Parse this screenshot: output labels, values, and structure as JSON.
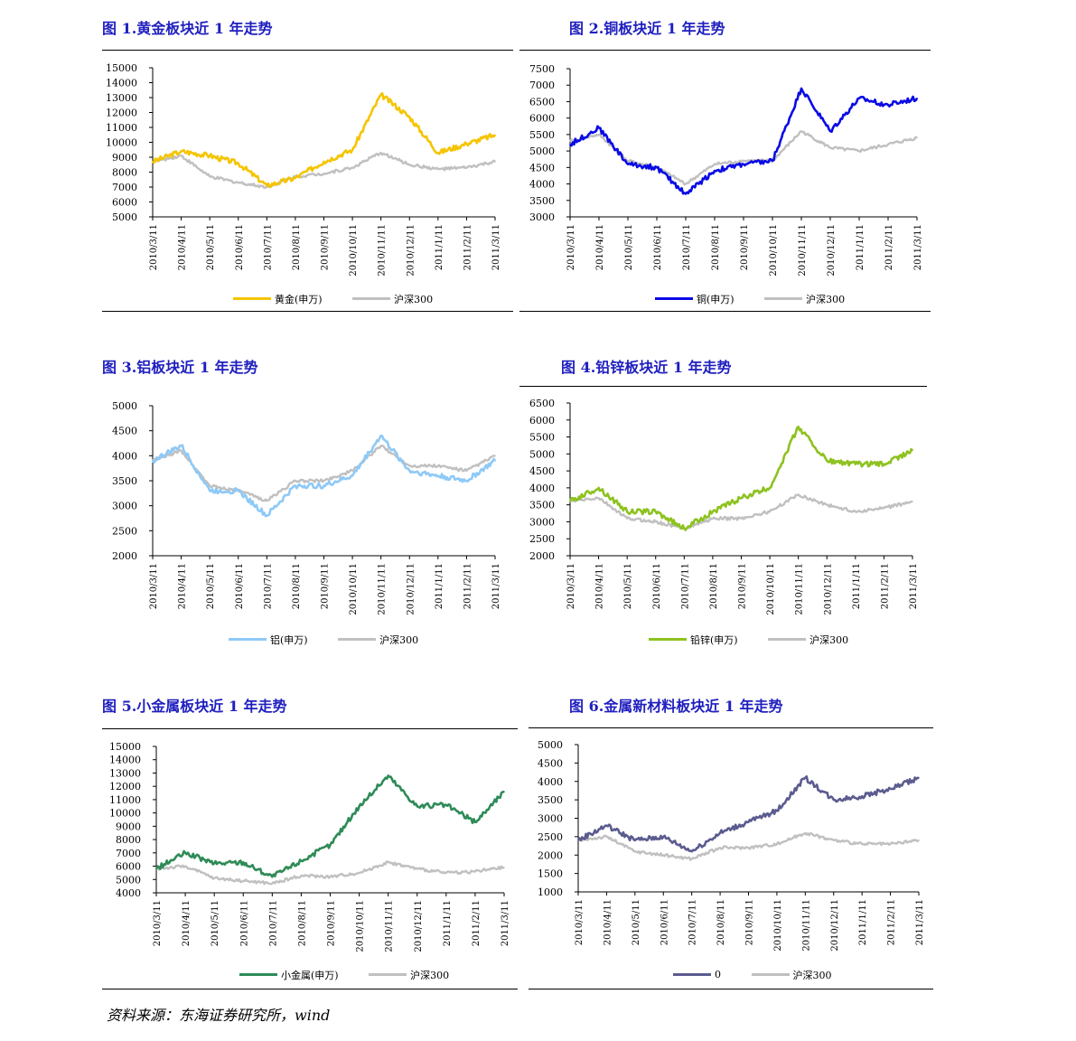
{
  "source_note": "资料来源：东海证券研究所，wind",
  "x_categories": [
    "2010/3/11",
    "2010/4/11",
    "2010/5/11",
    "2010/6/11",
    "2010/7/11",
    "2010/8/11",
    "2010/9/11",
    "2010/10/11",
    "2010/11/11",
    "2010/12/11",
    "2011/1/11",
    "2011/2/11",
    "2011/3/11"
  ],
  "colors": {
    "benchmark": "#c0c0c0",
    "title": "#1f1fbf"
  },
  "chart_data": [
    {
      "type": "line",
      "title": "图  1.黄金板块近 1 年走势",
      "ylim": [
        5000,
        15000
      ],
      "yticks": [
        5000,
        6000,
        7000,
        8000,
        9000,
        10000,
        11000,
        12000,
        13000,
        14000,
        15000
      ],
      "ytick_labels": [
        "5000",
        "6000",
        "7000",
        "8000",
        "9000",
        "10000",
        "11000",
        "12000",
        "13000",
        "14000",
        "15000"
      ],
      "series": [
        {
          "name": "黄金(申万)",
          "color": "#f5c400",
          "values": [
            8700,
            9400,
            9100,
            8600,
            7100,
            7600,
            8700,
            9500,
            13200,
            11700,
            9300,
            9900,
            10500
          ]
        },
        {
          "name": "沪深300",
          "color": "#c0c0c0",
          "values": [
            8700,
            9100,
            7700,
            7300,
            7000,
            7700,
            7900,
            8300,
            9300,
            8500,
            8200,
            8300,
            8700
          ]
        }
      ]
    },
    {
      "type": "line",
      "title": "图  2.铜板块近 1 年走势",
      "ylim": [
        3000,
        7500
      ],
      "yticks": [
        3000,
        3500,
        4000,
        4500,
        5000,
        5500,
        6000,
        6500,
        7000,
        7500
      ],
      "ytick_labels": [
        "3000",
        "3500",
        "4000",
        "4500",
        "5000",
        "5500",
        "6000",
        "6500",
        "7000",
        "7500"
      ],
      "series": [
        {
          "name": "铜(申万)",
          "color": "#0a0ae6",
          "values": [
            5200,
            5700,
            4600,
            4500,
            3700,
            4400,
            4600,
            4700,
            6900,
            5600,
            6600,
            6400,
            6600
          ]
        },
        {
          "name": "沪深300",
          "color": "#c0c0c0",
          "values": [
            5300,
            5500,
            4700,
            4500,
            4000,
            4600,
            4700,
            4700,
            5600,
            5100,
            5000,
            5200,
            5400
          ]
        }
      ]
    },
    {
      "type": "line",
      "title": "图  3.铝板块近 1 年走势",
      "ylim": [
        2000,
        5000
      ],
      "yticks": [
        2000,
        2500,
        3000,
        3500,
        4000,
        4500,
        5000
      ],
      "ytick_labels": [
        "2000",
        "2500",
        "3000",
        "3500",
        "4000",
        "4500",
        "5000"
      ],
      "series": [
        {
          "name": "铝(申万)",
          "color": "#8ec9f7",
          "values": [
            3900,
            4200,
            3300,
            3300,
            2800,
            3400,
            3400,
            3600,
            4400,
            3700,
            3600,
            3500,
            3900
          ]
        },
        {
          "name": "沪深300",
          "color": "#c0c0c0",
          "values": [
            3900,
            4100,
            3400,
            3300,
            3100,
            3500,
            3500,
            3700,
            4200,
            3800,
            3800,
            3700,
            4000
          ]
        }
      ]
    },
    {
      "type": "line",
      "title": "图  4.铅锌板块近 1 年走势",
      "ylim": [
        2000,
        6500
      ],
      "yticks": [
        2000,
        2500,
        3000,
        3500,
        4000,
        4500,
        5000,
        5500,
        6000,
        6500
      ],
      "ytick_labels": [
        "2000",
        "2500",
        "3000",
        "3500",
        "4000",
        "4500",
        "5000",
        "5500",
        "6000",
        "6500"
      ],
      "series": [
        {
          "name": "铅锌(申万)",
          "color": "#8dc21f",
          "values": [
            3600,
            4000,
            3300,
            3300,
            2800,
            3300,
            3700,
            4000,
            5800,
            4800,
            4700,
            4700,
            5100
          ]
        },
        {
          "name": "沪深300",
          "color": "#c0c0c0",
          "values": [
            3600,
            3700,
            3100,
            3000,
            2800,
            3100,
            3100,
            3300,
            3800,
            3500,
            3300,
            3400,
            3600
          ]
        }
      ]
    },
    {
      "type": "line",
      "title": "图  5.小金属板块近 1 年走势",
      "ylim": [
        4000,
        15000
      ],
      "yticks": [
        4000,
        5000,
        6000,
        7000,
        8000,
        9000,
        10000,
        11000,
        12000,
        13000,
        14000,
        15000
      ],
      "ytick_labels": [
        "4000",
        "5000",
        "6000",
        "7000",
        "8000",
        "9000",
        "10000",
        "11000",
        "12000",
        "13000",
        "14000",
        "15000"
      ],
      "series": [
        {
          "name": "小金属(申万)",
          "color": "#2e8b57",
          "values": [
            5800,
            7000,
            6200,
            6300,
            5200,
            6400,
            7600,
            10500,
            12800,
            10500,
            10600,
            9300,
            11600
          ]
        },
        {
          "name": "沪深300",
          "color": "#c0c0c0",
          "values": [
            5800,
            6000,
            5100,
            4900,
            4700,
            5300,
            5200,
            5500,
            6300,
            5800,
            5500,
            5600,
            5900
          ]
        }
      ]
    },
    {
      "type": "line",
      "title": "图  6.金属新材料板块近 1 年走势",
      "ylim": [
        1000,
        5000
      ],
      "yticks": [
        1000,
        1500,
        2000,
        2500,
        3000,
        3500,
        4000,
        4500,
        5000
      ],
      "ytick_labels": [
        "1000",
        "1500",
        "2000",
        "2500",
        "3000",
        "3500",
        "4000",
        "4500",
        "5000"
      ],
      "series": [
        {
          "name": "0",
          "color": "#5b5b8f",
          "values": [
            2400,
            2800,
            2400,
            2500,
            2100,
            2600,
            2900,
            3200,
            4100,
            3500,
            3600,
            3800,
            4100
          ]
        },
        {
          "name": "沪深300",
          "color": "#c0c0c0",
          "values": [
            2400,
            2500,
            2100,
            2000,
            1900,
            2200,
            2200,
            2300,
            2600,
            2400,
            2300,
            2300,
            2400
          ]
        }
      ]
    }
  ]
}
